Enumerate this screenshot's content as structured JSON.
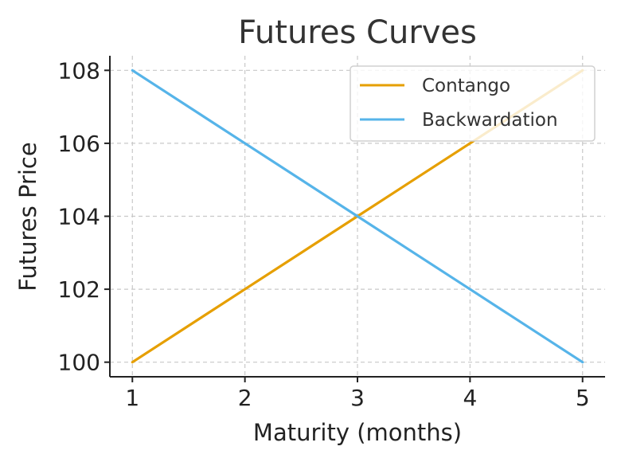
{
  "chart_data": {
    "type": "line",
    "title": "Futures Curves",
    "xlabel": "Maturity (months)",
    "ylabel": "Futures Price",
    "x": [
      1,
      2,
      3,
      4,
      5
    ],
    "xticks": [
      1,
      2,
      3,
      4,
      5
    ],
    "yticks": [
      100,
      102,
      104,
      106,
      108
    ],
    "xlim": [
      0.8,
      5.2
    ],
    "ylim": [
      99.6,
      108.4
    ],
    "grid": true,
    "legend_position": "top-right",
    "series": [
      {
        "name": "Contango",
        "color": "#E69F00",
        "values": [
          100,
          102,
          104,
          106,
          108
        ]
      },
      {
        "name": "Backwardation",
        "color": "#56B4E9",
        "values": [
          108,
          106,
          104,
          102,
          100
        ]
      }
    ]
  }
}
